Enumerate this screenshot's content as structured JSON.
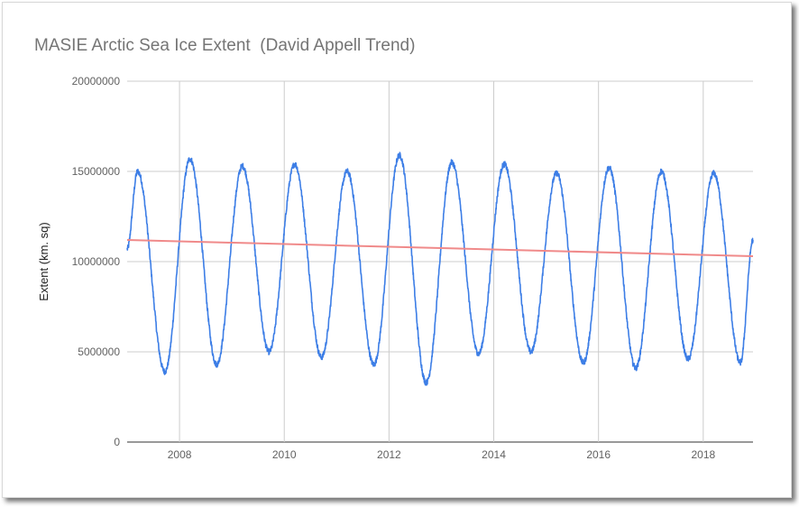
{
  "chart_data": {
    "type": "line",
    "title": "MASIE Arctic Sea Ice Extent  (David Appell Trend)",
    "xlabel": "",
    "ylabel": "Extent (km. sq)",
    "xlim": [
      2007.0,
      2018.95
    ],
    "ylim": [
      0,
      20000000
    ],
    "x_ticks": [
      2008,
      2010,
      2012,
      2014,
      2016,
      2018
    ],
    "x_tick_labels": [
      "2008",
      "2010",
      "2012",
      "2014",
      "2016",
      "2018"
    ],
    "y_ticks": [
      0,
      5000000,
      10000000,
      15000000,
      20000000
    ],
    "y_tick_labels": [
      "0",
      "5000000",
      "10000000",
      "15000000",
      "20000000"
    ],
    "grid": true,
    "colors": {
      "extent": "#3d7ee6",
      "trend": "#f08a8a",
      "grid": "#cccccc",
      "title": "#757575"
    },
    "series": [
      {
        "kind": "seasonal",
        "start_value": 10700000,
        "end_value": 11200000,
        "cycles": [
          {
            "max_x": 2007.2,
            "max": 15000000,
            "min_x": 2007.72,
            "min": 3900000
          },
          {
            "max_x": 2008.2,
            "max": 15700000,
            "min_x": 2008.71,
            "min": 4300000
          },
          {
            "max_x": 2009.2,
            "max": 15300000,
            "min_x": 2009.71,
            "min": 5000000
          },
          {
            "max_x": 2010.2,
            "max": 15400000,
            "min_x": 2010.71,
            "min": 4700000
          },
          {
            "max_x": 2011.2,
            "max": 15000000,
            "min_x": 2011.71,
            "min": 4300000
          },
          {
            "max_x": 2012.2,
            "max": 15900000,
            "min_x": 2012.71,
            "min": 3300000
          },
          {
            "max_x": 2013.2,
            "max": 15500000,
            "min_x": 2013.71,
            "min": 4900000
          },
          {
            "max_x": 2014.2,
            "max": 15400000,
            "min_x": 2014.71,
            "min": 5000000
          },
          {
            "max_x": 2015.2,
            "max": 14900000,
            "min_x": 2015.71,
            "min": 4400000
          },
          {
            "max_x": 2016.2,
            "max": 15200000,
            "min_x": 2016.71,
            "min": 4100000
          },
          {
            "max_x": 2017.2,
            "max": 15000000,
            "min_x": 2017.71,
            "min": 4600000
          },
          {
            "max_x": 2018.2,
            "max": 14900000,
            "min_x": 2018.71,
            "min": 4400000
          }
        ]
      },
      {
        "kind": "trend",
        "x": [
          2007.0,
          2018.95
        ],
        "values": [
          11200000,
          10300000
        ]
      }
    ]
  }
}
